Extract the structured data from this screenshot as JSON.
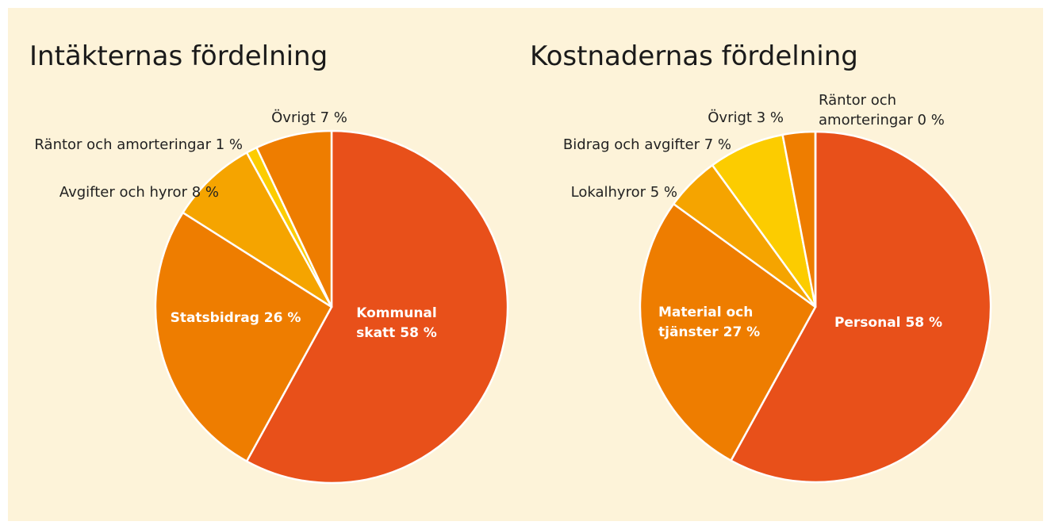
{
  "chart_data": [
    {
      "type": "pie",
      "title": "Intäkternas fördelning",
      "categories": [
        "Kommunal skatt",
        "Statsbidrag",
        "Avgifter och hyror",
        "Räntor och amorteringar",
        "Övrigt"
      ],
      "values": [
        58,
        26,
        8,
        1,
        7
      ],
      "value_labels": [
        "58 %",
        "26 %",
        "8 %",
        "1 %",
        "7 %"
      ],
      "colors": [
        "#e8501a",
        "#ee7d00",
        "#f5a400",
        "#fccc00",
        "#ee7d00"
      ]
    },
    {
      "type": "pie",
      "title": "Kostnadernas fördelning",
      "categories": [
        "Personal",
        "Material och tjänster",
        "Lokalhyror",
        "Bidrag och avgifter",
        "Övrigt",
        "Räntor och amorteringar"
      ],
      "values": [
        58,
        27,
        5,
        7,
        3,
        0
      ],
      "value_labels": [
        "58 %",
        "27 %",
        "5 %",
        "7 %",
        "3 %",
        "0 %"
      ],
      "colors": [
        "#e8501a",
        "#ee7d00",
        "#f5a400",
        "#fccc00",
        "#ee7d00",
        "#ee7d00"
      ]
    }
  ]
}
